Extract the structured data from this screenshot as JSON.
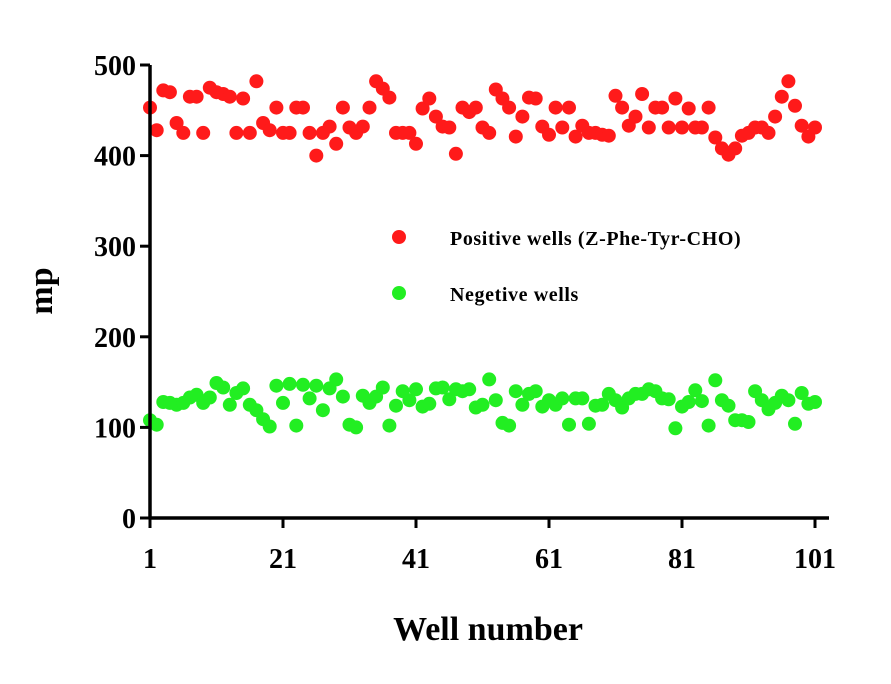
{
  "chart_data": {
    "type": "scatter",
    "xlabel": "Well number",
    "ylabel": "mp",
    "xlim": [
      1,
      101
    ],
    "ylim": [
      0,
      500
    ],
    "x_ticks": [
      "1",
      "21",
      "41",
      "61",
      "81",
      "101"
    ],
    "y_ticks": [
      "0",
      "100",
      "200",
      "300",
      "400",
      "500"
    ],
    "grid": false,
    "legend_position": "center-right",
    "series": [
      {
        "name": "Positive wells (Z-Phe-Tyr-CHO)",
        "color": "#ff1a1a",
        "x": [
          1,
          2,
          3,
          4,
          5,
          6,
          7,
          8,
          9,
          10,
          11,
          12,
          13,
          14,
          15,
          16,
          17,
          18,
          19,
          20,
          21,
          22,
          23,
          24,
          25,
          26,
          27,
          28,
          29,
          30,
          31,
          32,
          33,
          34,
          35,
          36,
          37,
          38,
          39,
          40,
          41,
          42,
          43,
          44,
          45,
          46,
          47,
          48,
          49,
          50,
          51,
          52,
          53,
          54,
          55,
          56,
          57,
          58,
          59,
          60,
          61,
          62,
          63,
          64,
          65,
          66,
          67,
          68,
          69,
          70,
          71,
          72,
          73,
          74,
          75,
          76,
          77,
          78,
          79,
          80,
          81,
          82,
          83,
          84,
          85,
          86,
          87,
          88,
          89,
          90,
          91,
          92,
          93,
          94,
          95,
          96,
          97,
          98,
          99,
          100,
          101
        ],
        "y": [
          453,
          428,
          472,
          470,
          436,
          425,
          465,
          465,
          425,
          475,
          470,
          468,
          465,
          425,
          463,
          425,
          482,
          436,
          428,
          453,
          425,
          425,
          453,
          453,
          425,
          400,
          425,
          432,
          413,
          453,
          431,
          425,
          432,
          453,
          482,
          474,
          464,
          425,
          425,
          425,
          413,
          452,
          463,
          443,
          432,
          431,
          402,
          453,
          448,
          453,
          431,
          425,
          473,
          463,
          453,
          421,
          443,
          464,
          463,
          432,
          423,
          453,
          431,
          453,
          421,
          433,
          425,
          425,
          423,
          422,
          466,
          453,
          433,
          443,
          468,
          431,
          453,
          453,
          431,
          463,
          431,
          452,
          431,
          431,
          453,
          420,
          408,
          401,
          408,
          422,
          425,
          431,
          431,
          425,
          443,
          465,
          482,
          455,
          433,
          421,
          431
        ]
      },
      {
        "name": "Negetive wells",
        "color": "#22ee22",
        "x": [
          1,
          2,
          3,
          4,
          5,
          6,
          7,
          8,
          9,
          10,
          11,
          12,
          13,
          14,
          15,
          16,
          17,
          18,
          19,
          20,
          21,
          22,
          23,
          24,
          25,
          26,
          27,
          28,
          29,
          30,
          31,
          32,
          33,
          34,
          35,
          36,
          37,
          38,
          39,
          40,
          41,
          42,
          43,
          44,
          45,
          46,
          47,
          48,
          49,
          50,
          51,
          52,
          53,
          54,
          55,
          56,
          57,
          58,
          59,
          60,
          61,
          62,
          63,
          64,
          65,
          66,
          67,
          68,
          69,
          70,
          71,
          72,
          73,
          74,
          75,
          76,
          77,
          78,
          79,
          80,
          81,
          82,
          83,
          84,
          85,
          86,
          87,
          88,
          89,
          90,
          91,
          92,
          93,
          94,
          95,
          96,
          97,
          98,
          99,
          100,
          101
        ],
        "y": [
          108,
          103,
          128,
          127,
          125,
          127,
          133,
          136,
          127,
          133,
          149,
          144,
          125,
          138,
          143,
          125,
          119,
          109,
          101,
          146,
          127,
          148,
          102,
          147,
          132,
          146,
          119,
          143,
          153,
          134,
          103,
          100,
          135,
          127,
          134,
          144,
          102,
          124,
          140,
          130,
          142,
          123,
          126,
          143,
          144,
          131,
          142,
          140,
          142,
          122,
          125,
          153,
          130,
          105,
          102,
          140,
          125,
          137,
          140,
          123,
          130,
          125,
          132,
          103,
          132,
          132,
          104,
          124,
          125,
          137,
          130,
          122,
          132,
          137,
          137,
          142,
          140,
          132,
          131,
          99,
          123,
          128,
          141,
          129,
          102,
          152,
          130,
          124,
          108,
          108,
          106,
          140,
          130,
          120,
          127,
          135,
          130,
          104,
          138,
          126,
          128
        ]
      }
    ]
  }
}
